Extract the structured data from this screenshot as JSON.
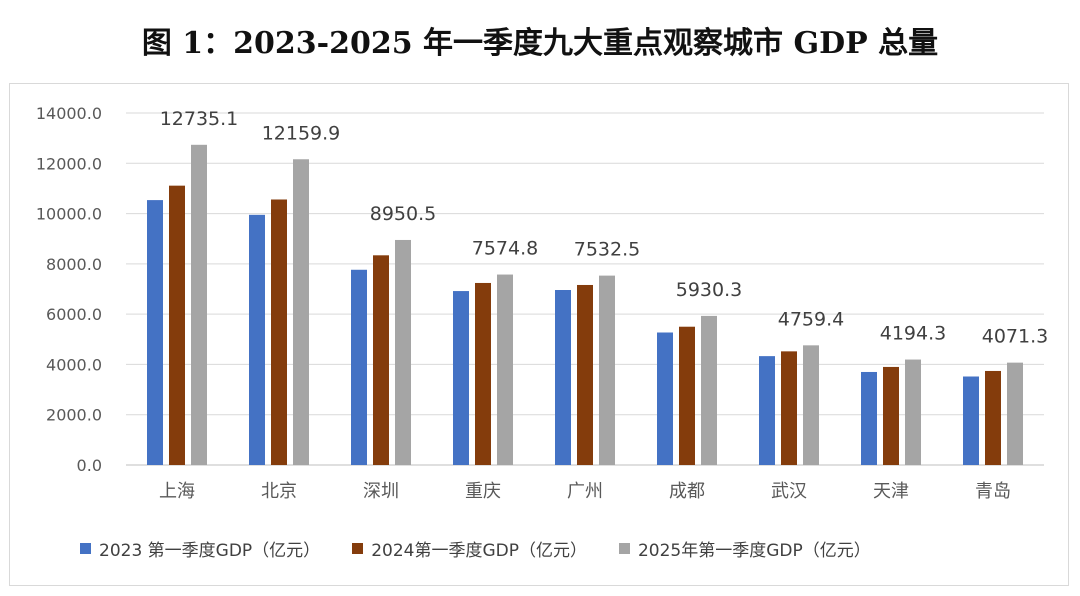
{
  "title": "图 1：2023-2025 年一季度九大重点观察城市 GDP 总量",
  "chart_data": {
    "type": "bar",
    "categories": [
      "上海",
      "北京",
      "深圳",
      "重庆",
      "广州",
      "成都",
      "武汉",
      "天津",
      "青岛"
    ],
    "series": [
      {
        "name": "2023 第一季度GDP（亿元）",
        "color": "#4472c4",
        "values": [
          10536.0,
          9950.0,
          7765.0,
          6918.0,
          6960.0,
          5270.0,
          4330.0,
          3700.0,
          3520.0
        ]
      },
      {
        "name": "2024第一季度GDP（亿元）",
        "color": "#843c0c",
        "values": [
          11110.0,
          10560.0,
          8340.0,
          7240.0,
          7160.0,
          5500.0,
          4520.0,
          3900.0,
          3740.0
        ]
      },
      {
        "name": "2025年第一季度GDP（亿元）",
        "color": "#a5a5a5",
        "values": [
          12735.1,
          12159.9,
          8950.5,
          7574.8,
          7532.5,
          5930.3,
          4759.4,
          4194.3,
          4071.3
        ],
        "data_labels": [
          "12735.1",
          "12159.9",
          "8950.5",
          "7574.8",
          "7532.5",
          "5930.3",
          "4759.4",
          "4194.3",
          "4071.3"
        ]
      }
    ],
    "y_ticks": [
      "0.0",
      "2000.0",
      "4000.0",
      "6000.0",
      "8000.0",
      "10000.0",
      "12000.0",
      "14000.0"
    ],
    "ylim": [
      0,
      14000
    ],
    "grid": true,
    "legend_position": "bottom"
  }
}
